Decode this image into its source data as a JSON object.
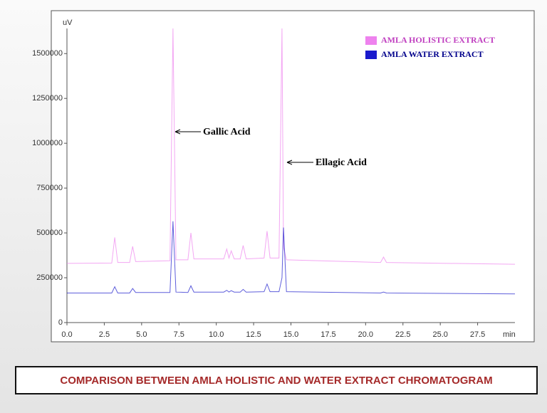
{
  "chart_data": {
    "type": "line",
    "y_label": "uV",
    "x_label": "min",
    "caption": "COMPARISON BETWEEN AMLA HOLISTIC AND WATER  EXTRACT CHROMATOGRAM",
    "annotations": [
      "Gallic Acid",
      "Ellagic Acid"
    ],
    "x": [
      0,
      3.0,
      3.2,
      3.4,
      4.2,
      4.4,
      4.6,
      6.9,
      7.1,
      7.3,
      8.1,
      8.3,
      8.5,
      10.5,
      10.7,
      10.85,
      11.0,
      11.2,
      11.6,
      11.8,
      12.0,
      13.2,
      13.4,
      13.6,
      14.2,
      14.4,
      14.5,
      14.7,
      21.0,
      21.2,
      21.4,
      30
    ],
    "series": [
      {
        "name": "AMLA HOLISTIC EXTRACT",
        "color": "#ee82ee",
        "values": [
          330000,
          332000,
          475000,
          335000,
          335000,
          425000,
          340000,
          345000,
          1640000,
          350000,
          350000,
          500000,
          355000,
          355000,
          410000,
          360000,
          400000,
          355000,
          355000,
          430000,
          355000,
          360000,
          510000,
          360000,
          360000,
          1640000,
          420000,
          350000,
          335000,
          365000,
          335000,
          325000
        ]
      },
      {
        "name": "AMLA WATER EXTRACT",
        "color": "#1a1acc",
        "values": [
          165000,
          165000,
          200000,
          165000,
          165000,
          190000,
          168000,
          168000,
          565000,
          170000,
          168000,
          205000,
          170000,
          170000,
          180000,
          170000,
          178000,
          170000,
          170000,
          185000,
          170000,
          172000,
          215000,
          172000,
          172000,
          250000,
          530000,
          172000,
          165000,
          170000,
          165000,
          160000
        ]
      }
    ],
    "xlim": [
      0,
      30
    ],
    "xticks": [
      {
        "value": 0,
        "label": "0.0"
      },
      2.5,
      {
        "value": 5,
        "label": "5.0"
      },
      7.5,
      {
        "value": 10,
        "label": "10.0"
      },
      12.5,
      {
        "value": 15,
        "label": "15.0"
      },
      17.5,
      {
        "value": 20,
        "label": "20.0"
      },
      22.5,
      {
        "value": 25,
        "label": "25.0"
      },
      27.5
    ],
    "ylim": [
      0,
      1640000
    ],
    "yticks": [
      0,
      250000,
      500000,
      750000,
      1000000,
      1250000,
      1500000
    ]
  }
}
